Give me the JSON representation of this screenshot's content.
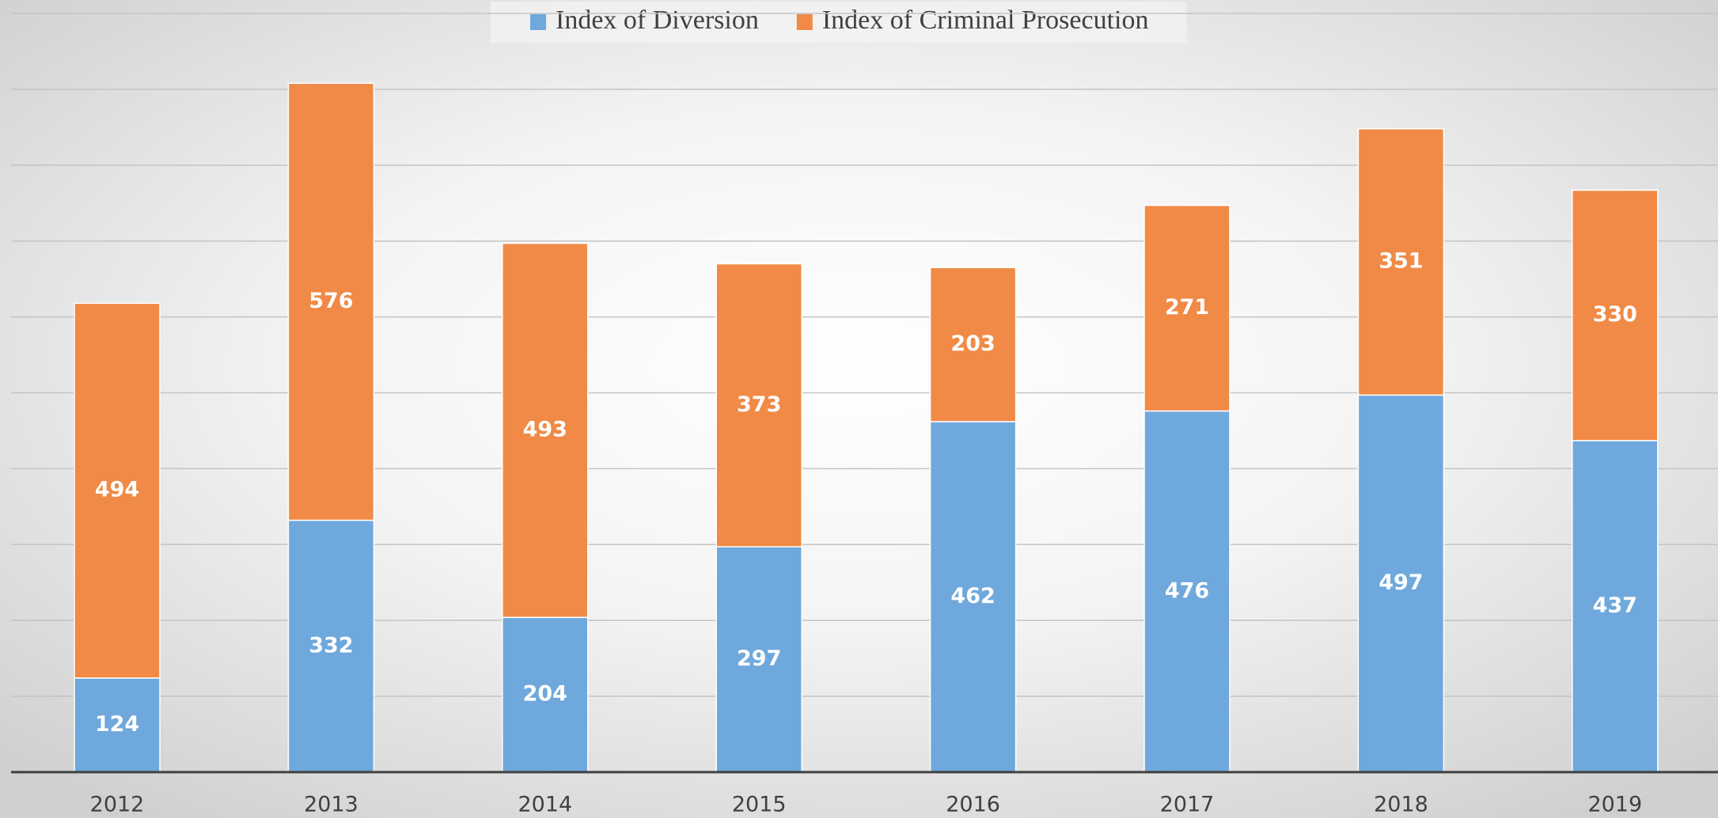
{
  "chart_data": {
    "type": "stacked_bar",
    "categories": [
      "2012",
      "2013",
      "2014",
      "2015",
      "2016",
      "2017",
      "2018",
      "2019"
    ],
    "series": [
      {
        "name": "Index of Diversion",
        "color": "#6fa8dc",
        "values": [
          124,
          332,
          204,
          297,
          462,
          476,
          497,
          437
        ]
      },
      {
        "name": "Index of Criminal Prosecution",
        "color": "#f08a46",
        "values": [
          494,
          576,
          493,
          373,
          203,
          271,
          351,
          330
        ]
      }
    ],
    "ylim": [
      0,
      1000
    ],
    "yticks": [
      0,
      100,
      200,
      300,
      400,
      500,
      600,
      700,
      800,
      900,
      1000
    ],
    "grid": true
  }
}
